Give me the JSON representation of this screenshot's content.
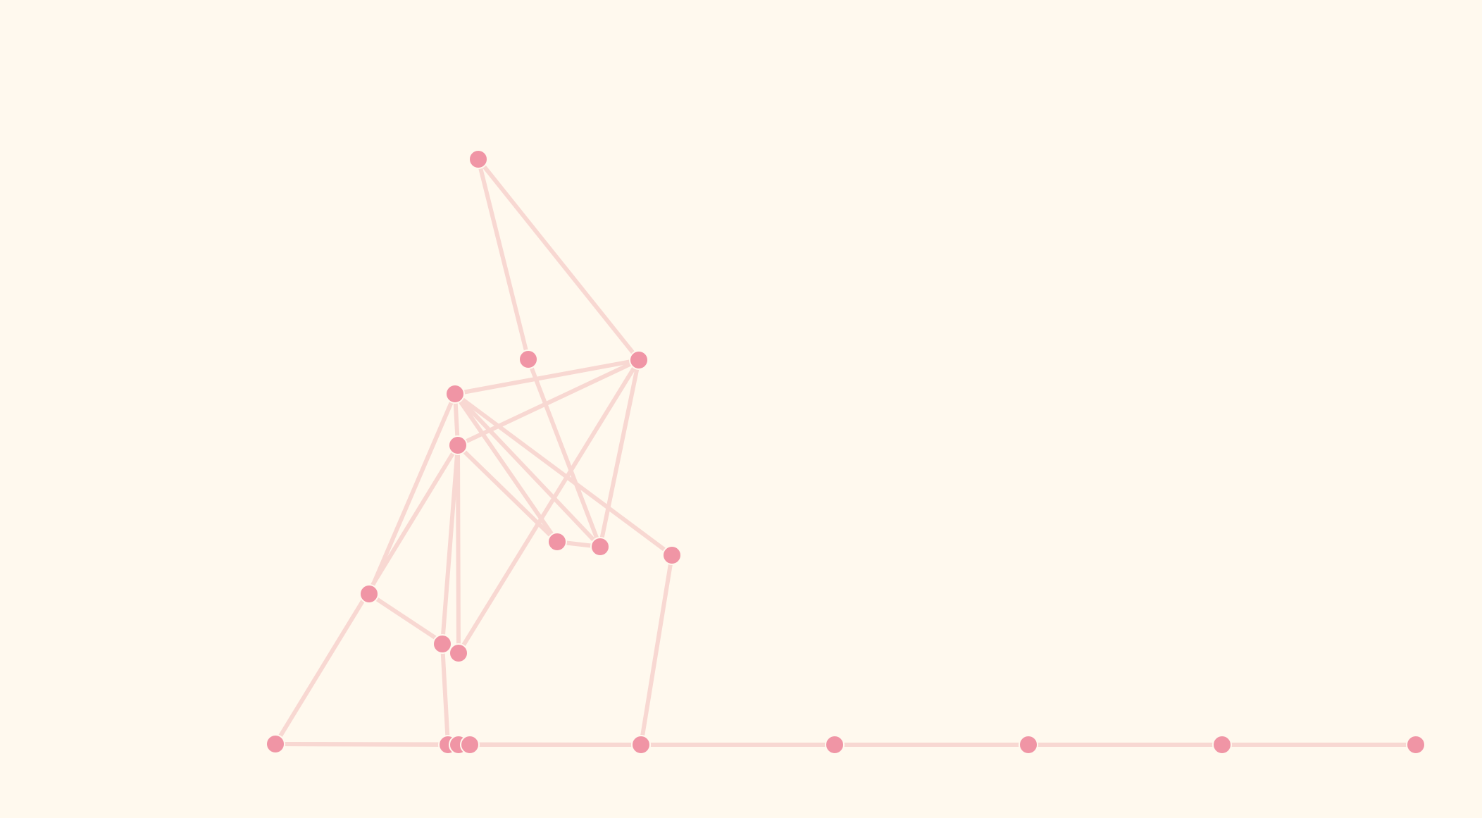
{
  "colors": {
    "background": "#fff9ee",
    "edge": "#f8d8d2",
    "node": "#f095a5"
  },
  "graph": {
    "nodes": [
      {
        "id": "n1"
      },
      {
        "id": "n2"
      },
      {
        "id": "n3"
      },
      {
        "id": "n4"
      },
      {
        "id": "n5"
      },
      {
        "id": "n6"
      },
      {
        "id": "n7"
      },
      {
        "id": "n8"
      },
      {
        "id": "n9"
      },
      {
        "id": "n10"
      },
      {
        "id": "n11"
      },
      {
        "id": "n12"
      },
      {
        "id": "n13"
      },
      {
        "id": "n14"
      },
      {
        "id": "n15"
      },
      {
        "id": "n16"
      },
      {
        "id": "n17"
      },
      {
        "id": "n18"
      },
      {
        "id": "n19"
      },
      {
        "id": "n20"
      }
    ],
    "edges": [
      [
        "n1",
        "n3"
      ],
      [
        "n1",
        "n2"
      ],
      [
        "n2",
        "n7"
      ],
      [
        "n3",
        "n4"
      ],
      [
        "n3",
        "n5"
      ],
      [
        "n3",
        "n7"
      ],
      [
        "n3",
        "n10"
      ],
      [
        "n4",
        "n5"
      ],
      [
        "n4",
        "n8"
      ],
      [
        "n4",
        "n7"
      ],
      [
        "n4",
        "n6"
      ],
      [
        "n5",
        "n10"
      ],
      [
        "n5",
        "n12"
      ],
      [
        "n5",
        "n11"
      ],
      [
        "n5",
        "n6"
      ],
      [
        "n6",
        "n7"
      ],
      [
        "n4",
        "n9"
      ],
      [
        "n8",
        "n10"
      ],
      [
        "n9",
        "n13"
      ],
      [
        "n11",
        "n14"
      ],
      [
        "n12",
        "n14"
      ],
      [
        "n12",
        "n13"
      ],
      [
        "n14",
        "n15"
      ],
      [
        "n15",
        "n16"
      ],
      [
        "n16",
        "n17"
      ],
      [
        "n17",
        "n13"
      ],
      [
        "n13",
        "n18"
      ],
      [
        "n18",
        "n19"
      ],
      [
        "n19",
        "n20"
      ]
    ]
  }
}
